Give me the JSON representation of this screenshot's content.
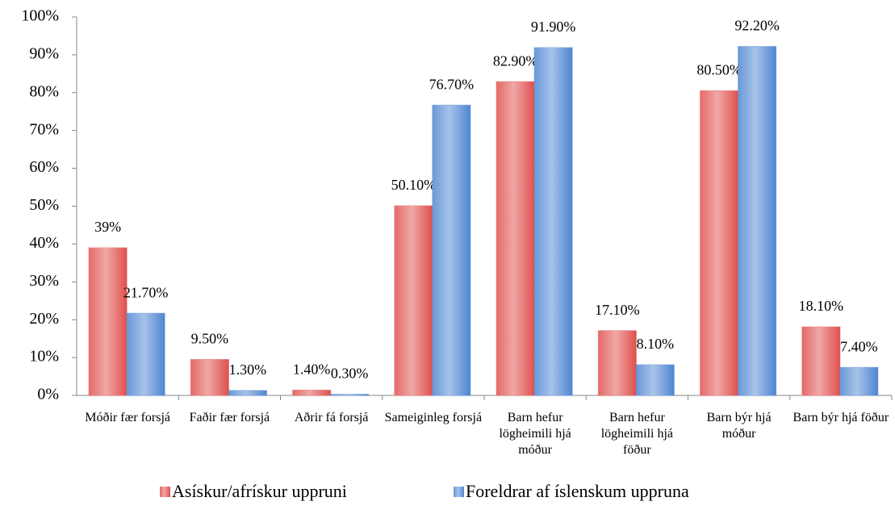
{
  "chart_data": {
    "type": "bar",
    "categories": [
      "Móðir fær forsjá",
      "Faðir fær forsjá",
      "Aðrir fá forsjá",
      "Sameiginleg forsjá",
      "Barn hefur lögheimili hjá móður",
      "Barn hefur lögheimili hjá föður",
      "Barn býr hjá móður",
      "Barn býr hjá föður"
    ],
    "series": [
      {
        "name": "Asískur/afrískur uppruni",
        "color": "#e0504d",
        "values": [
          39,
          9.5,
          1.4,
          50.1,
          82.9,
          17.1,
          80.5,
          18.1
        ],
        "value_labels": [
          "39%",
          "9.50%",
          "1.40%",
          "50.10%",
          "82.90%",
          "17.10%",
          "80.50%",
          "18.10%"
        ]
      },
      {
        "name": "Foreldrar af íslenskum uppruna",
        "color": "#4f86d2",
        "values": [
          21.7,
          1.3,
          0.3,
          76.7,
          91.9,
          8.1,
          92.2,
          7.4
        ],
        "value_labels": [
          "21.70%",
          "1.30%",
          "0.30%",
          "76.70%",
          "91.90%",
          "8.10%",
          "92.20%",
          "7.40%"
        ]
      }
    ],
    "ylim": [
      0,
      100
    ],
    "yticks": [
      {
        "value": 0,
        "label": "0%"
      },
      {
        "value": 10,
        "label": "10%"
      },
      {
        "value": 20,
        "label": "20%"
      },
      {
        "value": 30,
        "label": "30%"
      },
      {
        "value": 40,
        "label": "40%"
      },
      {
        "value": 50,
        "label": "50%"
      },
      {
        "value": 60,
        "label": "60%"
      },
      {
        "value": 70,
        "label": "70%"
      },
      {
        "value": 80,
        "label": "80%"
      },
      {
        "value": 90,
        "label": "90%"
      },
      {
        "value": 100,
        "label": "100%"
      }
    ],
    "grid": false,
    "legend": "bottom"
  }
}
